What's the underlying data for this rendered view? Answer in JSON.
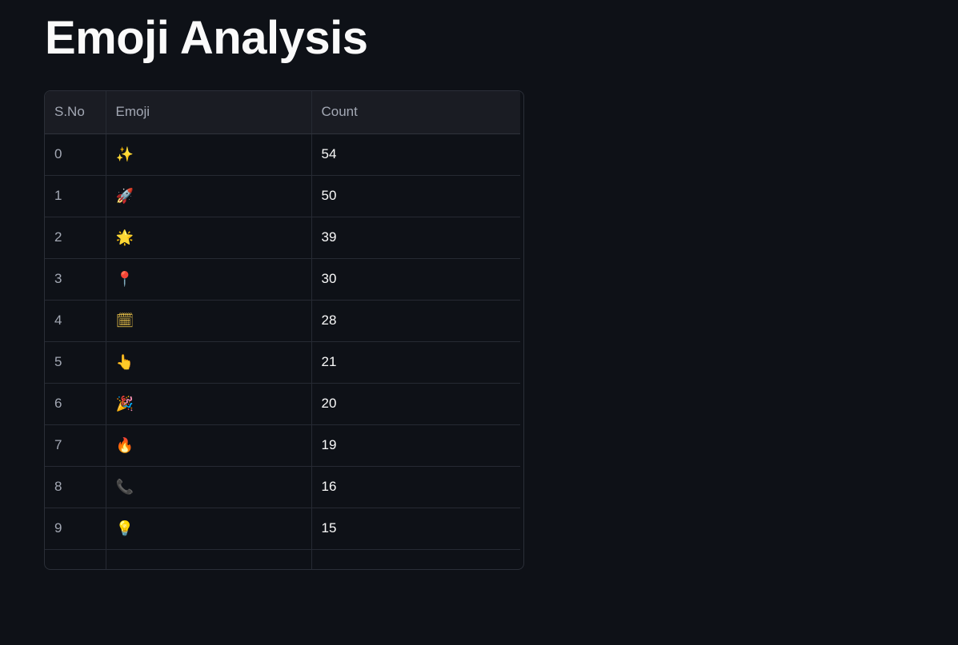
{
  "page": {
    "title": "Emoji Analysis"
  },
  "table": {
    "columns": [
      "S.No",
      "Emoji",
      "Count"
    ],
    "rows": [
      {
        "sno": "0",
        "emoji": "✨",
        "count": "54"
      },
      {
        "sno": "1",
        "emoji": "🚀",
        "count": "50"
      },
      {
        "sno": "2",
        "emoji": "🌟",
        "count": "39"
      },
      {
        "sno": "3",
        "emoji": "📍",
        "count": "30"
      },
      {
        "sno": "4",
        "emoji": "🗓",
        "count": "28"
      },
      {
        "sno": "5",
        "emoji": "👆",
        "count": "21"
      },
      {
        "sno": "6",
        "emoji": "🎉",
        "count": "20"
      },
      {
        "sno": "7",
        "emoji": "🔥",
        "count": "19"
      },
      {
        "sno": "8",
        "emoji": "📞",
        "count": "16"
      },
      {
        "sno": "9",
        "emoji": "💡",
        "count": "15"
      }
    ]
  },
  "colors": {
    "background": "#0e1117",
    "header_background": "#1a1c23",
    "grid_line": "#262a33",
    "text": "#fafafa",
    "muted_text": "#a3a8b4"
  }
}
